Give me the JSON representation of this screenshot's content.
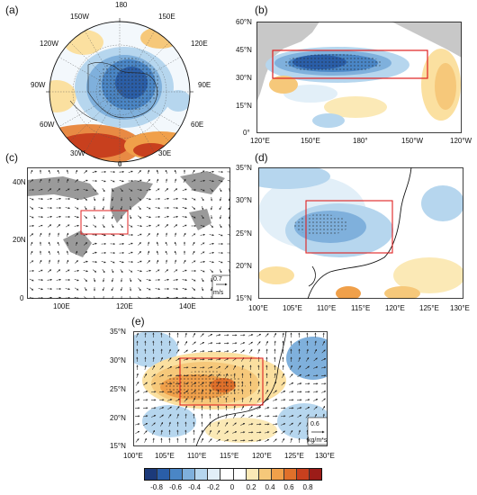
{
  "panels": {
    "a": {
      "label": "(a)",
      "lon_labels": [
        "180",
        "150W",
        "150E",
        "120W",
        "120E",
        "90W",
        "90E",
        "60W",
        "60E",
        "30W",
        "30E",
        "0"
      ]
    },
    "b": {
      "label": "(b)",
      "yticks": [
        "60°N",
        "45°N",
        "30°N",
        "15°N",
        "0°"
      ],
      "xticks": [
        "120°E",
        "150°E",
        "180°",
        "150°W",
        "120°W"
      ]
    },
    "c": {
      "label": "(c)",
      "yticks": [
        "40N",
        "20N",
        "0"
      ],
      "xticks": [
        "100E",
        "120E",
        "140E"
      ],
      "ref_vector": {
        "value": "0.7",
        "unit": "m/s"
      }
    },
    "d": {
      "label": "(d)",
      "yticks": [
        "35°N",
        "30°N",
        "25°N",
        "20°N",
        "15°N"
      ],
      "xticks": [
        "100°E",
        "105°E",
        "110°E",
        "115°E",
        "120°E",
        "125°E",
        "130°E"
      ]
    },
    "e": {
      "label": "(e)",
      "yticks": [
        "35°N",
        "30°N",
        "25°N",
        "20°N",
        "15°N"
      ],
      "xticks": [
        "100°E",
        "105°E",
        "110°E",
        "115°E",
        "120°E",
        "125°E",
        "130°E"
      ],
      "ref_vector": {
        "value": "0.6",
        "unit": "kg/m*s"
      }
    }
  },
  "colorbar": {
    "labels": [
      "-0.8",
      "-0.6",
      "-0.4",
      "-0.2",
      "0",
      "0.2",
      "0.4",
      "0.6",
      "0.8"
    ],
    "colors": [
      "#1c3a7a",
      "#2a5ea8",
      "#4a86c6",
      "#7fb0dc",
      "#b6d6ee",
      "#e2eff8",
      "#ffffff",
      "#ffffff",
      "#fbe9b6",
      "#f6c87a",
      "#f0a04a",
      "#e0702a",
      "#c8401e",
      "#9c1c18"
    ]
  }
}
